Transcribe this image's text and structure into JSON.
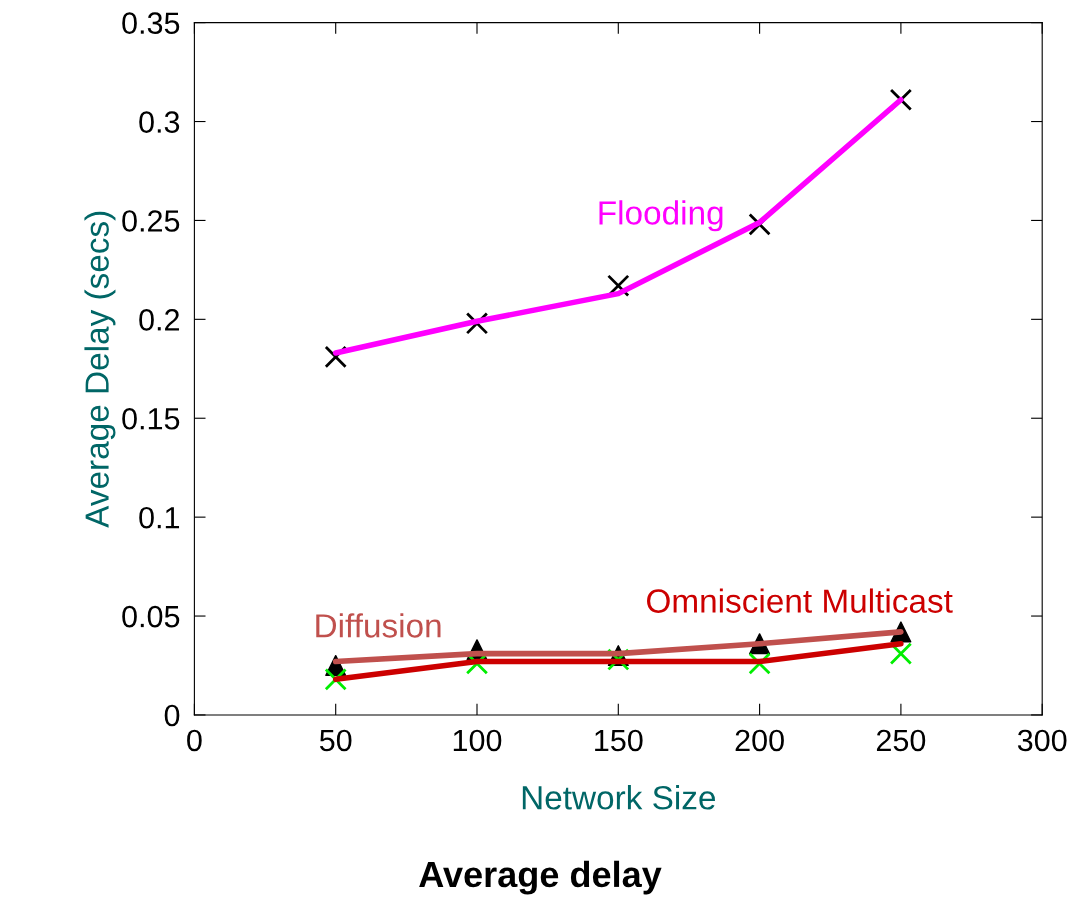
{
  "chart_data": {
    "type": "line",
    "title": "Average delay",
    "xlabel": "Network Size",
    "ylabel": "Average Delay (secs)",
    "x": [
      50,
      100,
      150,
      200,
      250
    ],
    "series": [
      {
        "name": "Flooding",
        "color": "#ff00ff",
        "values": [
          0.183,
          0.199,
          0.213,
          0.249,
          0.311
        ]
      },
      {
        "name": "Diffusion",
        "color": "#c0504d",
        "values": [
          0.027,
          0.031,
          0.031,
          0.036,
          0.042
        ]
      },
      {
        "name": "Omniscient Multicast",
        "color": "#cc0000",
        "values": [
          0.018,
          0.027,
          0.027,
          0.027,
          0.036
        ]
      },
      {
        "type": "scatter",
        "marker": "cross",
        "color": "#000000",
        "values": [
          0.181,
          0.198,
          0.217,
          0.248,
          0.311
        ]
      },
      {
        "type": "scatter",
        "marker": "triangle",
        "color": "#000000",
        "values": [
          0.025,
          0.033,
          0.03,
          0.036,
          0.042
        ]
      },
      {
        "type": "scatter",
        "marker": "cross",
        "color": "#00ee00",
        "values": [
          0.018,
          0.026,
          0.028,
          0.026,
          0.031
        ]
      }
    ],
    "xlim": [
      0,
      300
    ],
    "xticks": [
      0,
      50,
      100,
      150,
      200,
      250,
      300
    ],
    "ylim": [
      0,
      0.35
    ],
    "yticks": [
      0,
      0.05,
      0.1,
      0.15,
      0.2,
      0.25,
      0.3,
      0.35
    ],
    "grid": false,
    "legend": false
  }
}
